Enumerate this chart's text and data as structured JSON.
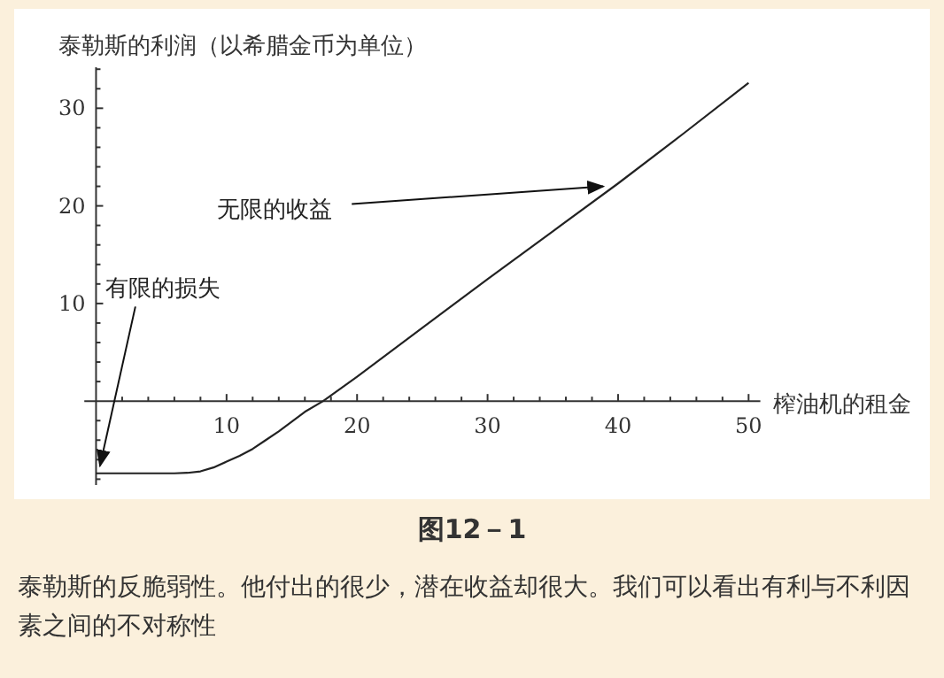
{
  "chart_data": {
    "type": "line",
    "ylabel": "泰勒斯的利润（以希腊金币为单位）",
    "xlabel": "榨油机的租金",
    "x": [
      0,
      2,
      4,
      5,
      6,
      7,
      8,
      9,
      10,
      11,
      12,
      13,
      14,
      15,
      16,
      17.4,
      20,
      25,
      30,
      35,
      40,
      45,
      50
    ],
    "values": [
      -7.4,
      -7.4,
      -7.4,
      -7.4,
      -7.4,
      -7.35,
      -7.2,
      -6.8,
      -6.2,
      -5.6,
      -4.9,
      -4.0,
      -3.1,
      -2.1,
      -1.1,
      0,
      2.5,
      7.5,
      12.5,
      17.4,
      22.3,
      27.4,
      32.6
    ],
    "color": "#222222",
    "xlim": [
      -0.9,
      50.9
    ],
    "ylim": [
      -8.6,
      34.2
    ],
    "xticks": [
      {
        "value": 2,
        "label": null
      },
      {
        "value": 4,
        "label": null
      },
      {
        "value": 6,
        "label": null
      },
      {
        "value": 8,
        "label": null
      },
      10,
      {
        "value": 12,
        "label": null
      },
      {
        "value": 14,
        "label": null
      },
      {
        "value": 16,
        "label": null
      },
      {
        "value": 18,
        "label": null
      },
      20,
      {
        "value": 22,
        "label": null
      },
      {
        "value": 24,
        "label": null
      },
      {
        "value": 26,
        "label": null
      },
      {
        "value": 28,
        "label": null
      },
      30,
      {
        "value": 32,
        "label": null
      },
      {
        "value": 34,
        "label": null
      },
      {
        "value": 36,
        "label": null
      },
      {
        "value": 38,
        "label": null
      },
      40,
      {
        "value": 42,
        "label": null
      },
      {
        "value": 44,
        "label": null
      },
      {
        "value": 46,
        "label": null
      },
      {
        "value": 48,
        "label": null
      },
      50
    ],
    "yticks": [
      {
        "value": -8,
        "label": null
      },
      {
        "value": -6,
        "label": null
      },
      {
        "value": -4,
        "label": null
      },
      {
        "value": -2,
        "label": null
      },
      {
        "value": 2,
        "label": null
      },
      {
        "value": 4,
        "label": null
      },
      {
        "value": 6,
        "label": null
      },
      {
        "value": 8,
        "label": null
      },
      10,
      {
        "value": 12,
        "label": null
      },
      {
        "value": 14,
        "label": null
      },
      {
        "value": 16,
        "label": null
      },
      {
        "value": 18,
        "label": null
      },
      20,
      {
        "value": 22,
        "label": null
      },
      {
        "value": 24,
        "label": null
      },
      {
        "value": 26,
        "label": null
      },
      {
        "value": 28,
        "label": null
      },
      30,
      {
        "value": 32,
        "label": null
      },
      {
        "value": 34,
        "label": null
      }
    ],
    "annotations": [
      {
        "text": "无限的收益",
        "x": 39,
        "y": 22
      },
      {
        "text": "有限的损失",
        "x": 0.3,
        "y": -7
      },
      "图12－1",
      "泰勒斯的反脆弱性。他付出的很少，潜在收益却很大。我们可以看出有利与不利因素之间的不对称性"
    ]
  }
}
